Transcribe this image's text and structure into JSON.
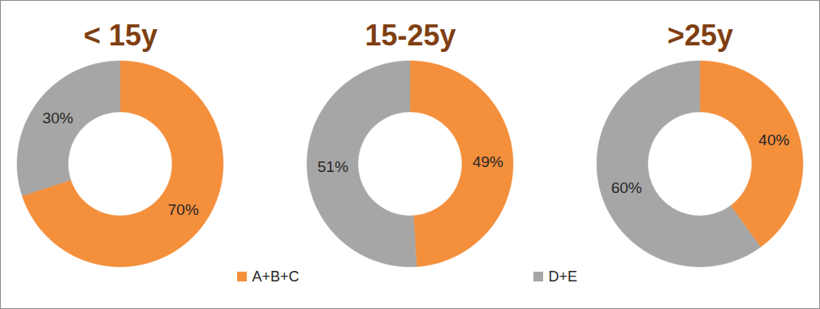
{
  "chart_data": [
    {
      "type": "pie",
      "title": "< 15y",
      "categories": [
        "A+B+C",
        "D+E"
      ],
      "values": [
        70,
        30
      ],
      "value_labels": [
        "70%",
        "30%"
      ],
      "colors": [
        "#f48f3c",
        "#a6a6a6"
      ],
      "data_labels": true,
      "legend": "bottom"
    },
    {
      "type": "pie",
      "title": "15-25y",
      "categories": [
        "A+B+C",
        "D+E"
      ],
      "values": [
        49,
        51
      ],
      "value_labels": [
        "49%",
        "51%"
      ],
      "colors": [
        "#f48f3c",
        "#a6a6a6"
      ],
      "data_labels": true,
      "legend": "bottom"
    },
    {
      "type": "pie",
      "title": ">25y",
      "categories": [
        "A+B+C",
        "D+E"
      ],
      "values": [
        40,
        60
      ],
      "value_labels": [
        "40%",
        "60%"
      ],
      "colors": [
        "#f48f3c",
        "#a6a6a6"
      ],
      "data_labels": true,
      "legend": "bottom"
    }
  ]
}
